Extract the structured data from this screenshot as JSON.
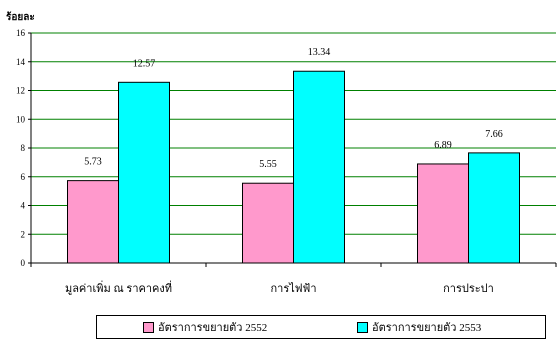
{
  "chart_data": {
    "type": "bar",
    "ylabel": "ร้อยละ",
    "ylim": [
      0,
      16
    ],
    "yticks": [
      0,
      2,
      4,
      6,
      8,
      10,
      12,
      14,
      16
    ],
    "grid": true,
    "categories": [
      "มูลค่าเพิ่ม ณ ราคาคงที่",
      "การไฟฟ้า",
      "การประปา"
    ],
    "series": [
      {
        "name": "อัตราการขยายตัว 2552",
        "color": "#ff99cc",
        "values": [
          5.73,
          5.55,
          6.89
        ]
      },
      {
        "name": "อัตราการขยายตัว 2553",
        "color": "#00ffff",
        "values": [
          12.57,
          13.34,
          7.66
        ]
      }
    ],
    "data_labels": [
      [
        "5.73",
        "5.55",
        "6.89"
      ],
      [
        "12.57",
        "13.34",
        "7.66"
      ]
    ],
    "legend_position": "bottom",
    "gridline_color": "#008000"
  }
}
